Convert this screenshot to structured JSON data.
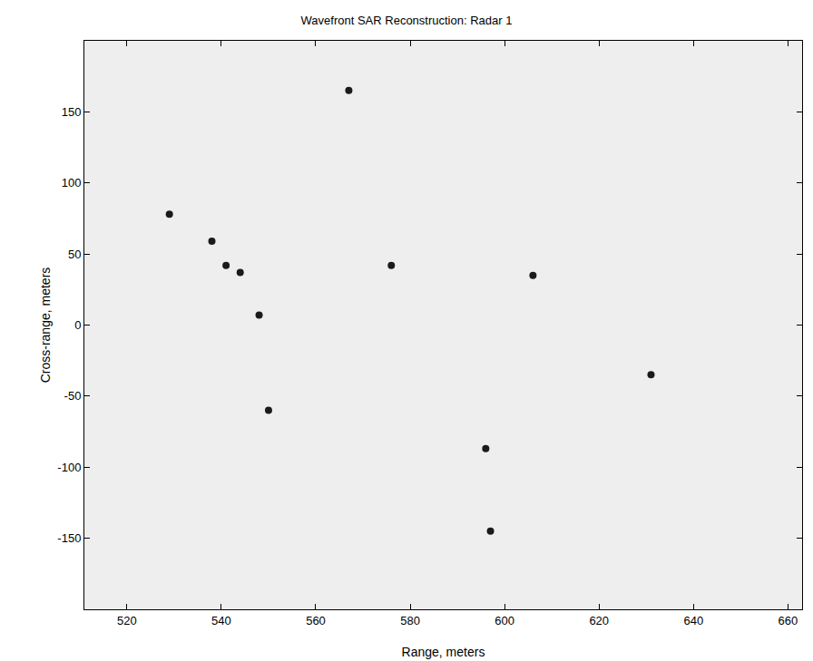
{
  "chart_data": {
    "type": "scatter",
    "title": "Wavefront SAR Reconstruction: Radar 1",
    "x_label": "Range, meters",
    "y_label": "Cross-range, meters",
    "x": [
      567,
      576,
      606,
      548,
      550,
      596,
      597,
      631,
      529,
      538,
      541,
      544
    ],
    "values": [
      165,
      42,
      35,
      7,
      -60,
      -87,
      -145,
      -35,
      78,
      59,
      42,
      37
    ],
    "color": "#1a1a1a",
    "marker": "circle",
    "xlim": [
      511,
      663
    ],
    "ylim": [
      -200,
      200
    ],
    "xticks": [
      520,
      540,
      560,
      580,
      600,
      620,
      640,
      660
    ],
    "yticks": [
      -150,
      -100,
      -50,
      0,
      50,
      100,
      150
    ],
    "grid": false
  }
}
